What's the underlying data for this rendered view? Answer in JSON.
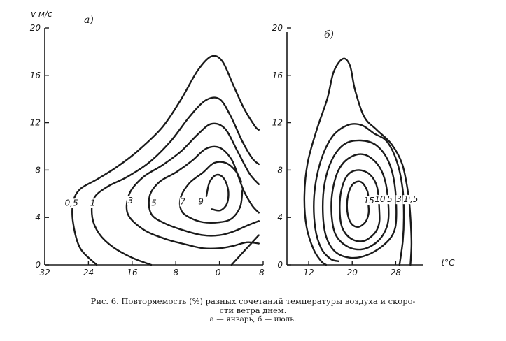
{
  "caption": {
    "line1": "Рис. 6. Повторяемость (%) разных сочетаний температуры воздуха и скоро-",
    "line2": "сти ветра днем.",
    "line3": "а — январь, б — июль."
  },
  "chart_data": [
    {
      "type": "contour",
      "panel_label": "а)",
      "ylabel": "v м/с",
      "xlabel": "",
      "xlim": [
        -32,
        8
      ],
      "ylim": [
        0,
        20
      ],
      "x_ticks": [
        -32,
        -24,
        -16,
        -8,
        0,
        8
      ],
      "y_ticks": [
        0,
        4,
        8,
        12,
        16,
        20
      ],
      "x_tick_labels": [
        "-32",
        "-24",
        "-16",
        "-8",
        "0",
        "8"
      ],
      "y_tick_labels": [
        "0",
        "4",
        "8",
        "12",
        "16",
        "20"
      ],
      "contours": [
        {
          "level": "0,5",
          "label_at": [
            -27.1,
            5.0
          ],
          "closed": false,
          "points": [
            [
              -22.5,
              0
            ],
            [
              -25.5,
              1.4
            ],
            [
              -26.8,
              3.5
            ],
            [
              -26.8,
              5.3
            ],
            [
              -25.5,
              6.4
            ],
            [
              -22.5,
              7.2
            ],
            [
              -19,
              8.2
            ],
            [
              -15,
              9.6
            ],
            [
              -10.5,
              11.6
            ],
            [
              -7,
              14
            ],
            [
              -4,
              16.4
            ],
            [
              -1.5,
              17.6
            ],
            [
              0.5,
              17.2
            ],
            [
              2.5,
              15.2
            ],
            [
              4.5,
              13.2
            ],
            [
              6.5,
              11.7
            ],
            [
              7.2,
              11.4
            ]
          ]
        },
        {
          "level": "1",
          "label_at": [
            -23.2,
            5.0
          ],
          "closed": false,
          "points": [
            [
              -12.5,
              0
            ],
            [
              -16,
              0.6
            ],
            [
              -19.5,
              1.5
            ],
            [
              -22,
              2.6
            ],
            [
              -23.3,
              4
            ],
            [
              -23,
              5.6
            ],
            [
              -20.5,
              6.6
            ],
            [
              -17,
              7.4
            ],
            [
              -13,
              8.6
            ],
            [
              -9,
              10.4
            ],
            [
              -5.5,
              12.5
            ],
            [
              -2.5,
              13.9
            ],
            [
              0,
              14
            ],
            [
              2,
              12.6
            ],
            [
              4.2,
              10.4
            ],
            [
              6,
              9
            ],
            [
              7.2,
              8.5
            ]
          ]
        },
        {
          "level": "3",
          "label_at": [
            -16.3,
            5.2
          ],
          "closed": false,
          "points": [
            [
              7.2,
              1.8
            ],
            [
              5,
              1.9
            ],
            [
              2.5,
              1.6
            ],
            [
              0,
              1.4
            ],
            [
              -3,
              1.4
            ],
            [
              -6,
              1.7
            ],
            [
              -10,
              2.2
            ],
            [
              -14,
              3
            ],
            [
              -16.8,
              4.3
            ],
            [
              -16.5,
              6.0
            ],
            [
              -14,
              7.4
            ],
            [
              -10.5,
              8.4
            ],
            [
              -7,
              9.6
            ],
            [
              -4,
              11
            ],
            [
              -1.5,
              11.9
            ],
            [
              1,
              11.5
            ],
            [
              3.3,
              9.6
            ],
            [
              5.5,
              7.7
            ],
            [
              7.2,
              6.8
            ]
          ]
        },
        {
          "level": "5",
          "label_at": [
            -12,
            5.0
          ],
          "closed": false,
          "points": [
            [
              7.2,
              3.7
            ],
            [
              5,
              3.3
            ],
            [
              2.5,
              2.8
            ],
            [
              0,
              2.5
            ],
            [
              -3,
              2.5
            ],
            [
              -6.5,
              2.9
            ],
            [
              -10,
              3.5
            ],
            [
              -12.5,
              4.3
            ],
            [
              -12.8,
              5.8
            ],
            [
              -11,
              7.0
            ],
            [
              -8,
              7.8
            ],
            [
              -5,
              8.8
            ],
            [
              -2.5,
              9.8
            ],
            [
              0,
              9.9
            ],
            [
              2.2,
              8.9
            ],
            [
              3.5,
              7.4
            ],
            [
              4.5,
              6.2
            ],
            [
              6,
              5.0
            ],
            [
              7.2,
              4.4
            ]
          ]
        },
        {
          "level": "7",
          "label_at": [
            -6.7,
            5.1
          ],
          "closed": false,
          "points": [
            [
              4.2,
              6.3
            ],
            [
              3.8,
              4.9
            ],
            [
              2.2,
              3.9
            ],
            [
              0,
              3.6
            ],
            [
              -3,
              3.6
            ],
            [
              -5.5,
              4.0
            ],
            [
              -7,
              4.6
            ],
            [
              -7.1,
              5.7
            ],
            [
              -5.5,
              6.9
            ],
            [
              -3,
              7.8
            ],
            [
              -1,
              8.6
            ],
            [
              1.2,
              8.6
            ],
            [
              3,
              7.9
            ],
            [
              4,
              7.0
            ]
          ]
        },
        {
          "level": "9",
          "label_at": [
            -3.4,
            5.1
          ],
          "closed": false,
          "points": [
            [
              -2.4,
              5.8
            ],
            [
              -1.8,
              7.0
            ],
            [
              -0.5,
              7.6
            ],
            [
              0.8,
              7.3
            ],
            [
              1.6,
              6.3
            ],
            [
              1.4,
              5.2
            ],
            [
              0.2,
              4.6
            ],
            [
              -1.4,
              4.7
            ]
          ]
        },
        {
          "level": "",
          "label_at": null,
          "closed": false,
          "points": [
            [
              2.2,
              0
            ],
            [
              4,
              0.9
            ],
            [
              6,
              1.9
            ],
            [
              7.2,
              2.5
            ]
          ]
        }
      ]
    },
    {
      "type": "contour",
      "panel_label": "б)",
      "ylabel": "",
      "xlabel": "t°C",
      "xlim": [
        8,
        34
      ],
      "ylim": [
        0,
        20
      ],
      "x_ticks": [
        12,
        20,
        28
      ],
      "y_ticks": [
        0,
        4,
        8,
        12,
        16,
        20
      ],
      "x_tick_labels": [
        "12",
        "20",
        "28"
      ],
      "y_tick_labels": [
        "0",
        "4",
        "8",
        "12",
        "16",
        "20"
      ],
      "contours": [
        {
          "level": "0,5",
          "label_at": [
            30.9,
            5.3
          ],
          "closed": false,
          "points": [
            [
              30.7,
              0
            ],
            [
              30.9,
              1.8
            ],
            [
              30.7,
              4.0
            ],
            [
              30.3,
              6.0
            ],
            [
              29.2,
              8.5
            ],
            [
              27.2,
              10.2
            ],
            [
              24.5,
              11.4
            ],
            [
              22.2,
              12.5
            ],
            [
              20.5,
              14.8
            ],
            [
              19.6,
              16.8
            ],
            [
              18.3,
              17.4
            ],
            [
              16.6,
              16.3
            ],
            [
              15.4,
              14.0
            ],
            [
              13.4,
              11.3
            ],
            [
              11.8,
              8.6
            ],
            [
              11.2,
              5.8
            ],
            [
              11.6,
              3.2
            ],
            [
              12.9,
              1.3
            ],
            [
              14.3,
              0.3
            ],
            [
              15.2,
              0
            ]
          ]
        },
        {
          "level": "1",
          "label_at": [
            29.9,
            5.3
          ],
          "closed": false,
          "points": [
            [
              28.7,
              0
            ],
            [
              29.3,
              2.0
            ],
            [
              29.5,
              4.0
            ],
            [
              29.3,
              6.3
            ],
            [
              28.3,
              8.6
            ],
            [
              26.4,
              10.4
            ],
            [
              24.0,
              11.1
            ],
            [
              21.7,
              11.8
            ],
            [
              19.2,
              11.8
            ],
            [
              16.3,
              10.8
            ],
            [
              14.1,
              8.6
            ],
            [
              13.0,
              5.8
            ],
            [
              13.2,
              3.1
            ],
            [
              14.3,
              1.4
            ],
            [
              16,
              0.5
            ],
            [
              17.5,
              0.3
            ]
          ]
        },
        {
          "level": "3",
          "label_at": [
            28.6,
            5.3
          ],
          "closed": true,
          "points": [
            [
              28.1,
              4.0
            ],
            [
              27.8,
              6.8
            ],
            [
              26.6,
              8.8
            ],
            [
              24.4,
              10.1
            ],
            [
              21.6,
              10.5
            ],
            [
              18.6,
              10.2
            ],
            [
              16.3,
              8.9
            ],
            [
              14.9,
              6.8
            ],
            [
              14.6,
              4.4
            ],
            [
              15.2,
              2.4
            ],
            [
              16.9,
              1.1
            ],
            [
              19.6,
              0.6
            ],
            [
              22.6,
              0.8
            ],
            [
              25.6,
              1.6
            ],
            [
              27.5,
              2.6
            ]
          ]
        },
        {
          "level": "5",
          "label_at": [
            26.9,
            5.3
          ],
          "closed": true,
          "points": [
            [
              26.7,
              4.2
            ],
            [
              26.2,
              6.8
            ],
            [
              24.8,
              8.4
            ],
            [
              22.3,
              9.3
            ],
            [
              19.7,
              9.1
            ],
            [
              17.6,
              8.1
            ],
            [
              16.4,
              6.3
            ],
            [
              16.2,
              4.3
            ],
            [
              16.9,
              2.6
            ],
            [
              18.9,
              1.6
            ],
            [
              21.6,
              1.3
            ],
            [
              24.2,
              1.8
            ],
            [
              26.0,
              2.8
            ]
          ]
        },
        {
          "level": "10",
          "label_at": [
            25.1,
            5.3
          ],
          "closed": true,
          "points": [
            [
              25.0,
              4.4
            ],
            [
              24.6,
              6.5
            ],
            [
              23.3,
              7.6
            ],
            [
              21.2,
              8.0
            ],
            [
              19.2,
              7.6
            ],
            [
              18.0,
              6.3
            ],
            [
              17.7,
              4.6
            ],
            [
              18.2,
              3.1
            ],
            [
              19.8,
              2.2
            ],
            [
              22.0,
              2.0
            ],
            [
              24.0,
              2.6
            ],
            [
              24.9,
              3.4
            ]
          ]
        },
        {
          "level": "15",
          "label_at": [
            23.1,
            5.2
          ],
          "closed": true,
          "points": [
            [
              23.0,
              5.0
            ],
            [
              22.8,
              6.2
            ],
            [
              21.6,
              7.0
            ],
            [
              20.1,
              6.8
            ],
            [
              19.2,
              5.8
            ],
            [
              19.1,
              4.5
            ],
            [
              19.8,
              3.5
            ],
            [
              21.1,
              3.2
            ],
            [
              22.4,
              3.6
            ],
            [
              23.0,
              4.3
            ]
          ]
        }
      ]
    }
  ]
}
